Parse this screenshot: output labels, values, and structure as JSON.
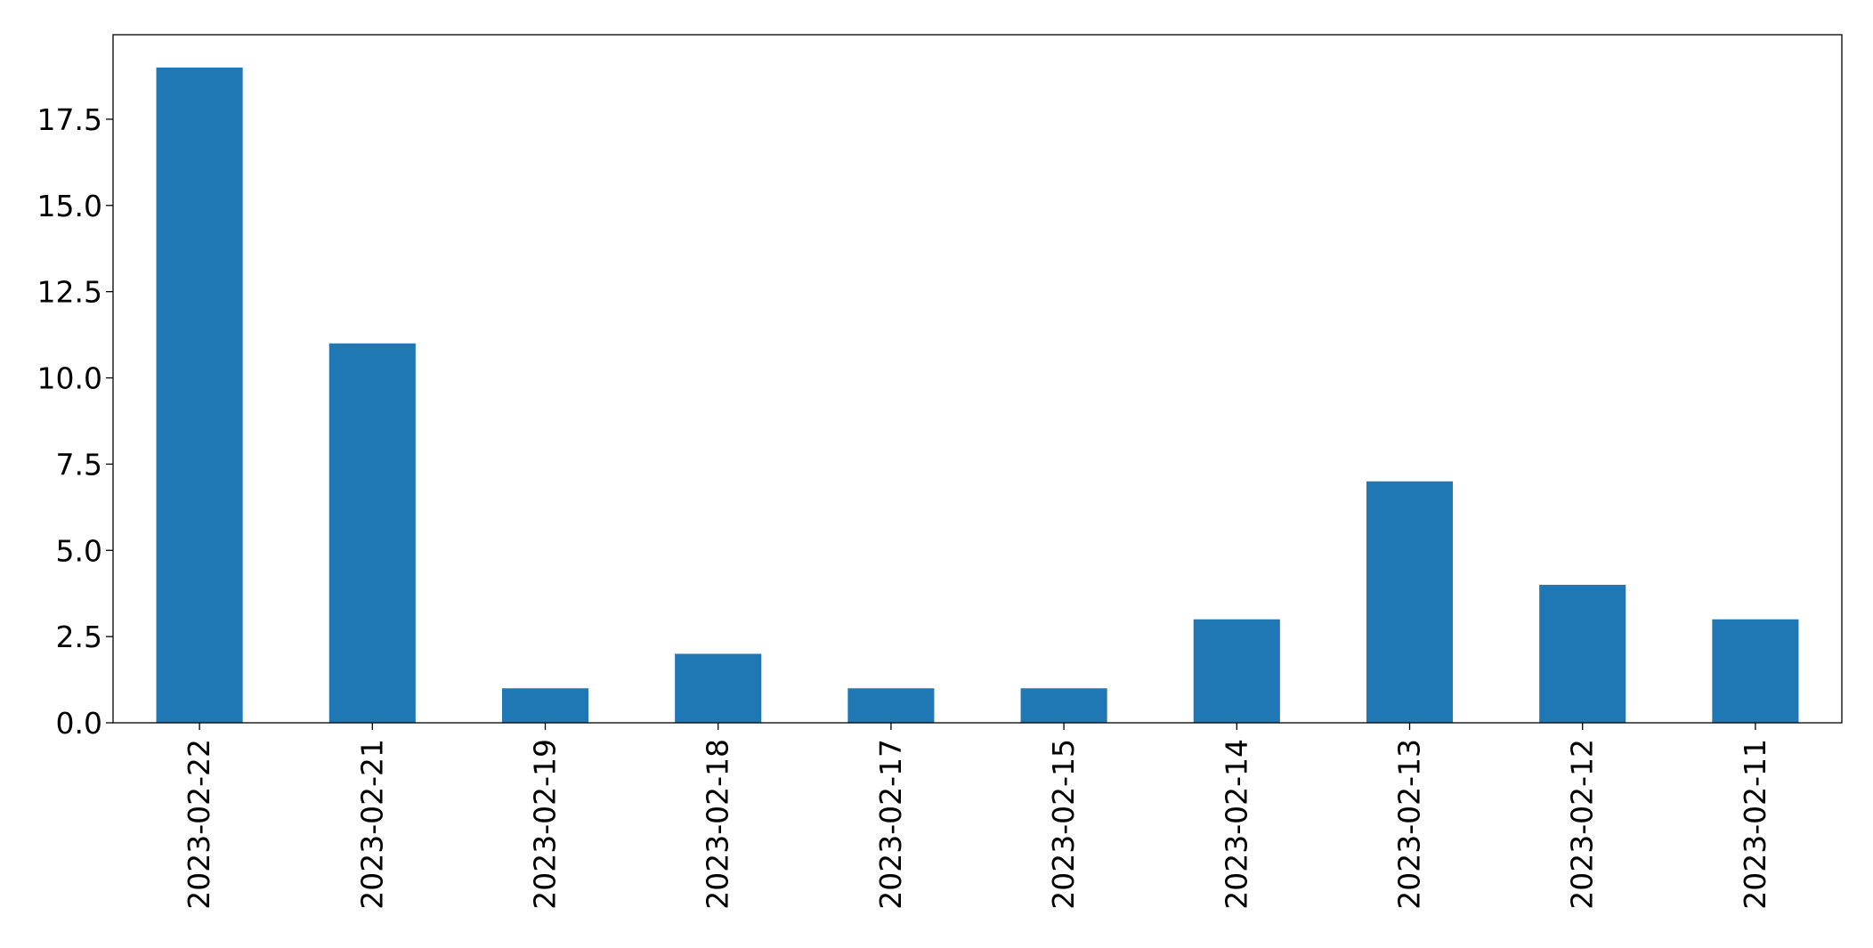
{
  "chart_data": {
    "type": "bar",
    "categories": [
      "2023-02-22",
      "2023-02-21",
      "2023-02-19",
      "2023-02-18",
      "2023-02-17",
      "2023-02-15",
      "2023-02-14",
      "2023-02-13",
      "2023-02-12",
      "2023-02-11"
    ],
    "values": [
      19,
      11,
      1,
      2,
      1,
      1,
      3,
      7,
      4,
      3
    ],
    "title": "",
    "xlabel": "",
    "ylabel": "",
    "ylim": [
      0,
      19.95
    ],
    "yticks": [
      0.0,
      2.5,
      5.0,
      7.5,
      10.0,
      12.5,
      15.0,
      17.5
    ],
    "ytick_labels": [
      "0.0",
      "2.5",
      "5.0",
      "7.5",
      "10.0",
      "12.5",
      "15.0",
      "17.5"
    ],
    "grid": false,
    "legend": "none",
    "bar_color": "#1f77b4",
    "x_tick_rotation": "vertical"
  }
}
